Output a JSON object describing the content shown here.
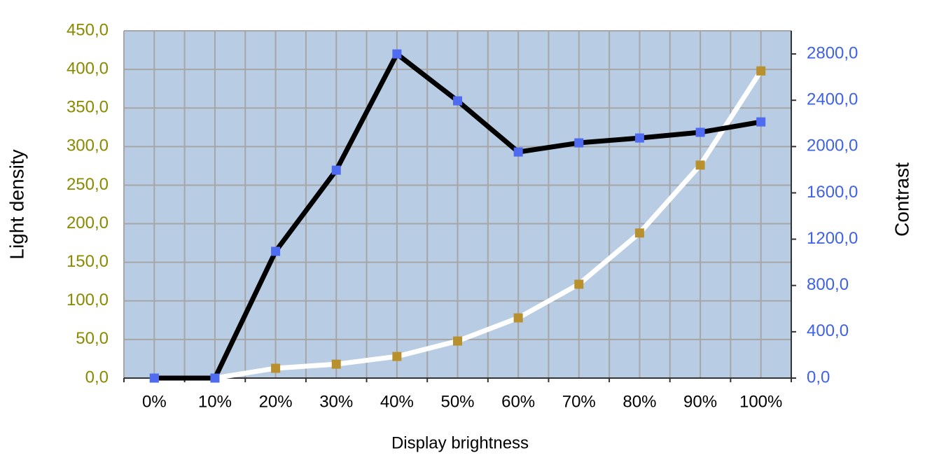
{
  "chart_data": {
    "type": "line",
    "x_label": "Display brightness",
    "y_label": "Light density",
    "y2_label": "Contrast",
    "categories": [
      "0%",
      "10%",
      "20%",
      "30%",
      "40%",
      "50%",
      "60%",
      "70%",
      "80%",
      "90%",
      "100%"
    ],
    "series": [
      {
        "color": "#ffffff",
        "marker_color": "#b8902e",
        "values": [
          0,
          0,
          12.7,
          18,
          28,
          48,
          78,
          121.6,
          188,
          276,
          398
        ]
      },
      {
        "color": "#000000",
        "marker_color": "#4f6bef",
        "axis": "y2",
        "values": [
          0,
          0,
          1095,
          1796,
          2800,
          2395,
          1953,
          2032,
          2074,
          2123,
          2213
        ]
      }
    ],
    "ylim": [
      0,
      450
    ],
    "yticks": [
      {
        "value": 0,
        "label": "0,0"
      },
      {
        "value": 50,
        "label": "50,0"
      },
      {
        "value": 100,
        "label": "100,0"
      },
      {
        "value": 150,
        "label": "150,0"
      },
      {
        "value": 200,
        "label": "200,0"
      },
      {
        "value": 250,
        "label": "250,0"
      },
      {
        "value": 300,
        "label": "300,0"
      },
      {
        "value": 350,
        "label": "350,0"
      },
      {
        "value": 400,
        "label": "400,0"
      },
      {
        "value": 450,
        "label": "450,0"
      }
    ],
    "y2lim": [
      0,
      3000
    ],
    "y2ticks": [
      {
        "value": 0,
        "label": "0,0"
      },
      {
        "value": 400,
        "label": "400,0"
      },
      {
        "value": 800,
        "label": "800,0"
      },
      {
        "value": 1200,
        "label": "1200,0"
      },
      {
        "value": 1600,
        "label": "1600,0"
      },
      {
        "value": 2000,
        "label": "2000,0"
      },
      {
        "value": 2400,
        "label": "2400,0"
      },
      {
        "value": 2800,
        "label": "2800,0"
      }
    ],
    "ytick_color": "#8a8a00",
    "y2tick_color": "#3f62e6",
    "plot_background": "#b8cce4",
    "grid": true
  }
}
